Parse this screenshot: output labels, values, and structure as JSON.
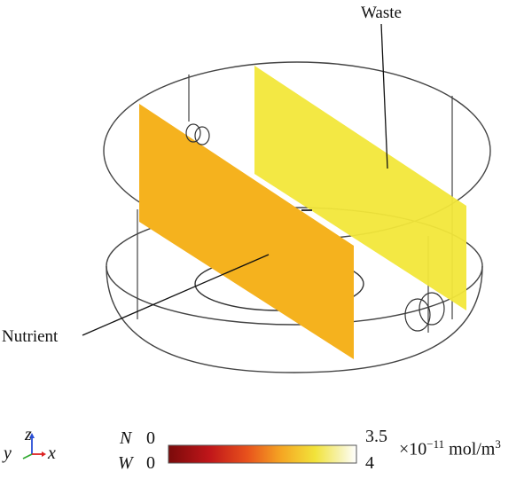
{
  "labels": {
    "waste": "Waste",
    "nutrient": "Nutrient"
  },
  "axes_triad": {
    "y": "y",
    "z": "z",
    "x": "x"
  },
  "colorbar": {
    "row1_symbol": "N",
    "row1_min": "0",
    "row1_max": "3.5",
    "row2_symbol": "W",
    "row2_min": "0",
    "row2_max": "4",
    "scale_prefix": "×10",
    "scale_exponent": "−11",
    "unit": "mol/m",
    "unit_exponent": "3",
    "gradient_colors": [
      "#7a0a0a",
      "#c0161a",
      "#e8521c",
      "#f5a623",
      "#f2e33a",
      "#f7f3b6",
      "#ffffff"
    ]
  },
  "colors": {
    "nutrient_plane": "#f5b21e",
    "waste_plane": "#f2e73a",
    "outline": "#333333"
  }
}
